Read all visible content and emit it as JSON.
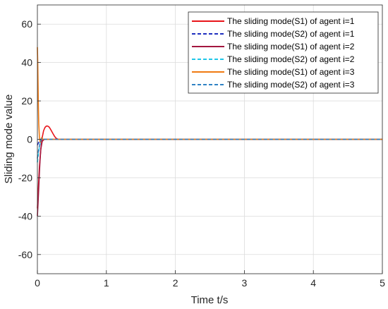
{
  "chart_data": {
    "type": "line",
    "title": "",
    "xlabel": "Time t/s",
    "ylabel": "Sliding mode value",
    "xlim": [
      0,
      5
    ],
    "ylim": [
      -70,
      70
    ],
    "xticks": [
      0,
      1,
      2,
      3,
      4,
      5
    ],
    "yticks": [
      -60,
      -40,
      -20,
      0,
      20,
      40,
      60
    ],
    "grid": true,
    "legend_position": "top-right",
    "series": [
      {
        "name": "The sliding mode(S1) of agent i=1",
        "color": "#e8141a",
        "style": "solid",
        "x": [
          0,
          0.01,
          0.02,
          0.03,
          0.05,
          0.07,
          0.09,
          0.11,
          0.13,
          0.15,
          0.17,
          0.19,
          0.21,
          0.23,
          0.25,
          0.27,
          0.3,
          0.35,
          0.5,
          1,
          2,
          3,
          4,
          5
        ],
        "y": [
          -36,
          -28,
          -21,
          -14,
          -5,
          1,
          4.5,
          6.2,
          6.9,
          6.9,
          6.4,
          5.3,
          4,
          2.7,
          1.5,
          0.6,
          0,
          0,
          0,
          0,
          0,
          0,
          0,
          0
        ]
      },
      {
        "name": "The sliding mode(S2) of agent i=1",
        "color": "#1f2fbf",
        "style": "dashed",
        "x": [
          0,
          0.02,
          0.04,
          0.06,
          0.08,
          0.1,
          0.15,
          0.2,
          1,
          2,
          3,
          4,
          5
        ],
        "y": [
          -3,
          -1.5,
          -0.5,
          0.5,
          0.3,
          0,
          0,
          0,
          0,
          0,
          0,
          0,
          0
        ]
      },
      {
        "name": "The sliding mode(S1) of agent i=2",
        "color": "#a3173f",
        "style": "solid",
        "x": [
          0,
          0.01,
          0.02,
          0.03,
          0.04,
          0.05,
          0.07,
          0.1,
          0.15,
          0.2,
          1,
          2,
          3,
          4,
          5
        ],
        "y": [
          -40,
          -33,
          -25,
          -17,
          -10,
          -5,
          -1,
          0,
          0,
          0,
          0,
          0,
          0,
          0,
          0
        ]
      },
      {
        "name": "The sliding mode(S2) of agent i=2",
        "color": "#1fc6e8",
        "style": "dashed",
        "x": [
          0,
          0.02,
          0.04,
          0.06,
          0.08,
          0.1,
          0.15,
          1,
          2,
          3,
          4,
          5
        ],
        "y": [
          -12,
          -6,
          -2,
          0.5,
          0.2,
          0,
          0,
          0,
          0,
          0,
          0,
          0
        ]
      },
      {
        "name": "The sliding mode(S1) of agent i=3",
        "color": "#f07a12",
        "style": "solid",
        "x": [
          0,
          0.005,
          0.01,
          0.015,
          0.02,
          0.03,
          0.04,
          0.05,
          0.06,
          0.07,
          0.08,
          0.1,
          0.15,
          0.2,
          1,
          2,
          3,
          4,
          5
        ],
        "y": [
          48,
          40,
          28,
          16,
          8,
          1,
          -1.5,
          -1,
          0.8,
          0.5,
          0,
          0,
          0,
          0,
          0,
          0,
          0,
          0,
          0
        ]
      },
      {
        "name": "The sliding mode(S2) of agent i=3",
        "color": "#2f82c4",
        "style": "dashed",
        "x": [
          0,
          0.02,
          0.04,
          0.06,
          0.08,
          0.1,
          0.15,
          1,
          2,
          3,
          4,
          5
        ],
        "y": [
          -10,
          -5,
          -2,
          0.4,
          0.3,
          0,
          0,
          0,
          0,
          0,
          0,
          0
        ]
      }
    ]
  }
}
